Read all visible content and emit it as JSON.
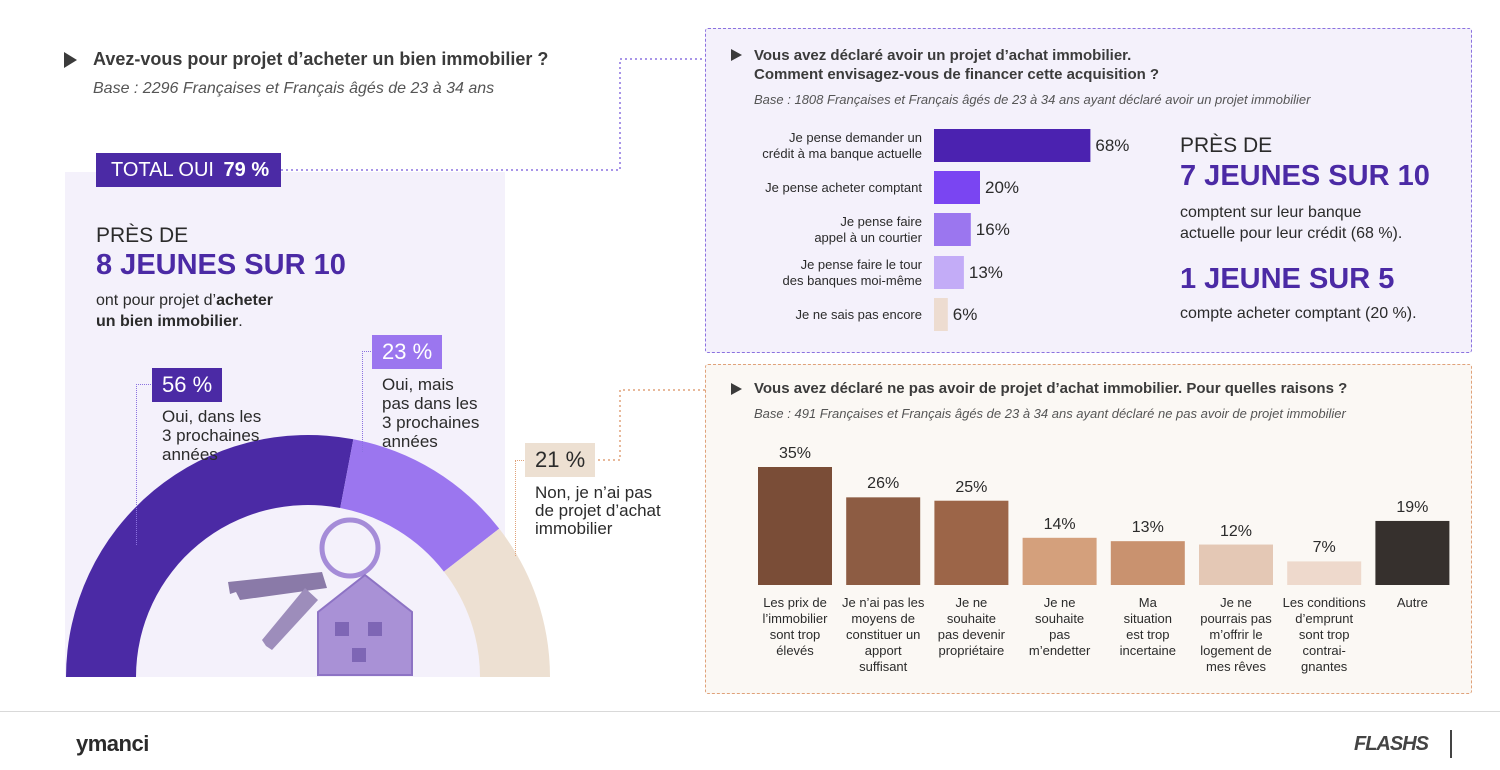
{
  "left": {
    "question": "Avez-vous pour projet d’acheter un bien immobilier ?",
    "base": "Base : 2296 Françaises et Français âgés de 23 à 34 ans",
    "total_label": "TOTAL OUI",
    "total_value": "79 %",
    "pres_de": "PRÈS DE",
    "headline": "8 JEUNES SUR 10",
    "sub_line1_a": "ont pour projet d’",
    "sub_line1_b": "acheter",
    "sub_line2_b": "un bien immobilier",
    "sub_line2_c": "."
  },
  "chart_data": [
    {
      "type": "pie",
      "categories": [
        "Oui, dans les 3 prochaines années",
        "Oui, mais pas dans les 3 prochaines années",
        "Non, je n’ai pas de projet d’achat immobilier"
      ],
      "values": [
        56,
        23,
        21
      ],
      "value_labels": [
        "56 %",
        "23 %",
        "21 %"
      ],
      "label_lines": [
        [
          "Oui, dans les",
          "3 prochaines",
          "années"
        ],
        [
          "Oui, mais",
          "pas dans les",
          "3 prochaines",
          "années"
        ],
        [
          "Non, je n’ai pas",
          "de projet d’achat",
          "immobilier"
        ]
      ],
      "colors": [
        "#4b2aa5",
        "#9b76ef",
        "#ede0d2"
      ],
      "shape": "semi-donut"
    },
    {
      "type": "bar",
      "orientation": "horizontal",
      "title_line1": "Vous avez déclaré avoir un projet d’achat immobilier.",
      "title_line2": "Comment envisagez-vous de financer cette acquisition ?",
      "base": "Base : 1808 Françaises et Français âgés de 23 à 34 ans ayant déclaré avoir un projet immobilier",
      "categories": [
        [
          "Je pense demander un",
          "crédit à ma banque actuelle"
        ],
        [
          "Je pense acheter comptant"
        ],
        [
          "Je pense faire",
          "appel à un courtier"
        ],
        [
          "Je pense faire le tour",
          "des banques moi-même"
        ],
        [
          "Je ne sais pas encore"
        ]
      ],
      "values": [
        68,
        20,
        16,
        13,
        6
      ],
      "value_labels": [
        "68%",
        "20%",
        "16%",
        "13%",
        "6%"
      ],
      "colors": [
        "#4b22b0",
        "#7a45f2",
        "#9b76ef",
        "#c3acf7",
        "#eddcd0"
      ],
      "xlim": [
        0,
        100
      ]
    },
    {
      "type": "bar",
      "orientation": "vertical",
      "title": "Vous avez déclaré ne pas avoir de projet d’achat immobilier. Pour quelles raisons ?",
      "base": "Base : 491 Françaises et Français âgés de 23 à 34 ans ayant déclaré ne pas avoir de projet immobilier",
      "categories": [
        [
          "Les prix de",
          "l’immobilier",
          "sont trop",
          "élevés"
        ],
        [
          "Je n’ai pas les",
          "moyens de",
          "constituer un",
          "apport",
          "suffisant"
        ],
        [
          "Je ne",
          "souhaite",
          "pas devenir",
          "propriétaire"
        ],
        [
          "Je ne",
          "souhaite",
          "pas",
          "m’endetter"
        ],
        [
          "Ma",
          "situation",
          "est trop",
          "incertaine"
        ],
        [
          "Je ne",
          "pourrais pas",
          "m’offrir le",
          "logement de",
          "mes rêves"
        ],
        [
          "Les conditions",
          "d’emprunt",
          "sont trop",
          "contrai-",
          "gnantes"
        ],
        [
          "Autre"
        ]
      ],
      "values": [
        35,
        26,
        25,
        14,
        13,
        12,
        7,
        19
      ],
      "value_labels": [
        "35%",
        "26%",
        "25%",
        "14%",
        "13%",
        "12%",
        "7%",
        "19%"
      ],
      "colors": [
        "#7a4d37",
        "#8d5c43",
        "#9c6548",
        "#d4a07c",
        "#c9926f",
        "#e4c8b5",
        "#eed9cc",
        "#36302d"
      ],
      "ylim": [
        0,
        35
      ]
    }
  ],
  "insights": {
    "pres_de": "PRÈS DE",
    "headline1": "7 JEUNES SUR 10",
    "text1_line1": "comptent sur leur banque",
    "text1_line2": "actuelle pour leur crédit (68 %).",
    "headline2": "1 JEUNE SUR 5",
    "text2": "compte acheter comptant (20 %)."
  },
  "footer": {
    "brand": "ymanci",
    "flash_logo": "FLASHS"
  }
}
